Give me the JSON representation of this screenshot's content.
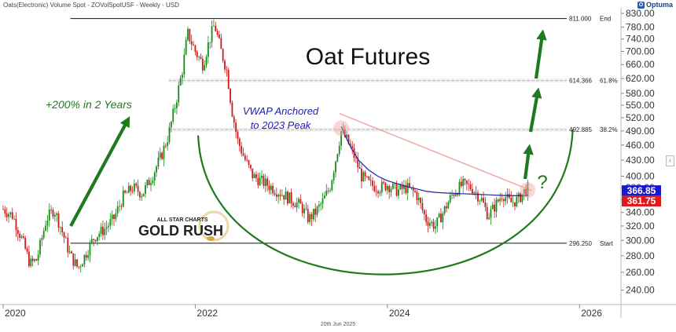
{
  "header": {
    "symbol_line": "Oats(Electronic) Volume Spot - ZOVolSpotUSF - Weekly - USD"
  },
  "brand": {
    "name": "Optuma"
  },
  "footer": {
    "date": "20th Jun 2025"
  },
  "logo": {
    "line1": "ALL STAR CHARTS",
    "line2": "GOLD RUSH"
  },
  "chart_data": {
    "type": "candlestick",
    "title": "Oat Futures",
    "x_tick_labels": [
      "2020",
      "2022",
      "2024",
      "2026"
    ],
    "x_tick_values": [
      2020.0,
      2022.0,
      2024.0,
      2026.0
    ],
    "x_range": [
      2020.0,
      2026.35
    ],
    "y_range": [
      225,
      845
    ],
    "y_scale": "log",
    "y_ticks": [
      240,
      260,
      280,
      300,
      320,
      340,
      360,
      380,
      400,
      430,
      460,
      490,
      520,
      550,
      580,
      620,
      660,
      700,
      740,
      780,
      830
    ],
    "y_tick_labels": [
      "240.00",
      "260.00",
      "280.00",
      "300.00",
      "320.00",
      "340.00",
      "360.00",
      "380.00",
      "400.00",
      "430.00",
      "460.00",
      "490.00",
      "520.00",
      "550.00",
      "580.00",
      "620.00",
      "660.00",
      "700.00",
      "740.00",
      "780.00",
      "830.00"
    ],
    "levels": [
      {
        "value": 811.0,
        "value_label": "811.000",
        "name": "End",
        "style": "solid",
        "color": "#000000"
      },
      {
        "value": 614.366,
        "value_label": "614.366",
        "name": "61.8%",
        "style": "dashed",
        "color": "#888888"
      },
      {
        "value": 492.885,
        "value_label": "492.885",
        "name": "38.2%",
        "style": "dashed",
        "color": "#888888"
      },
      {
        "value": 296.25,
        "value_label": "296.250",
        "name": "Start",
        "style": "solid",
        "color": "#000000"
      }
    ],
    "last_price_tags": [
      {
        "value": 366.85,
        "label": "366.85",
        "color": "#1a1acc"
      },
      {
        "value": 361.75,
        "label": "361.75",
        "color": "#e01a1a"
      }
    ],
    "annotations": {
      "rally": "+200% in 2 Years",
      "vwap_line1": "VWAP Anchored",
      "vwap_line2": "to 2023 Peak",
      "question": "?"
    },
    "price_path": [
      [
        2020.0,
        345
      ],
      [
        2020.1,
        335
      ],
      [
        2020.2,
        300
      ],
      [
        2020.28,
        270
      ],
      [
        2020.35,
        275
      ],
      [
        2020.45,
        330
      ],
      [
        2020.53,
        345
      ],
      [
        2020.6,
        318
      ],
      [
        2020.7,
        280
      ],
      [
        2020.78,
        265
      ],
      [
        2020.85,
        280
      ],
      [
        2020.95,
        305
      ],
      [
        2021.05,
        315
      ],
      [
        2021.15,
        330
      ],
      [
        2021.25,
        365
      ],
      [
        2021.35,
        380
      ],
      [
        2021.45,
        370
      ],
      [
        2021.55,
        400
      ],
      [
        2021.65,
        440
      ],
      [
        2021.72,
        480
      ],
      [
        2021.8,
        560
      ],
      [
        2021.87,
        650
      ],
      [
        2021.92,
        760
      ],
      [
        2022.0,
        700
      ],
      [
        2022.08,
        660
      ],
      [
        2022.15,
        740
      ],
      [
        2022.2,
        790
      ],
      [
        2022.27,
        700
      ],
      [
        2022.33,
        640
      ],
      [
        2022.38,
        540
      ],
      [
        2022.44,
        470
      ],
      [
        2022.52,
        430
      ],
      [
        2022.6,
        400
      ],
      [
        2022.7,
        390
      ],
      [
        2022.8,
        380
      ],
      [
        2022.9,
        370
      ],
      [
        2023.0,
        360
      ],
      [
        2023.1,
        350
      ],
      [
        2023.18,
        330
      ],
      [
        2023.25,
        340
      ],
      [
        2023.32,
        355
      ],
      [
        2023.4,
        380
      ],
      [
        2023.46,
        430
      ],
      [
        2023.52,
        490
      ],
      [
        2023.58,
        470
      ],
      [
        2023.65,
        440
      ],
      [
        2023.73,
        400
      ],
      [
        2023.82,
        385
      ],
      [
        2023.92,
        380
      ],
      [
        2024.0,
        385
      ],
      [
        2024.1,
        375
      ],
      [
        2024.2,
        380
      ],
      [
        2024.3,
        370
      ],
      [
        2024.4,
        330
      ],
      [
        2024.5,
        320
      ],
      [
        2024.58,
        340
      ],
      [
        2024.68,
        370
      ],
      [
        2024.78,
        385
      ],
      [
        2024.88,
        380
      ],
      [
        2024.98,
        360
      ],
      [
        2025.05,
        335
      ],
      [
        2025.12,
        350
      ],
      [
        2025.2,
        370
      ],
      [
        2025.28,
        355
      ],
      [
        2025.36,
        360
      ],
      [
        2025.43,
        375
      ],
      [
        2025.47,
        380
      ]
    ],
    "vwap_path": [
      [
        2023.52,
        500
      ],
      [
        2023.56,
        480
      ],
      [
        2023.62,
        455
      ],
      [
        2023.7,
        430
      ],
      [
        2023.8,
        412
      ],
      [
        2023.9,
        400
      ],
      [
        2024.0,
        392
      ],
      [
        2024.1,
        387
      ],
      [
        2024.2,
        382
      ],
      [
        2024.3,
        378
      ],
      [
        2024.4,
        374
      ],
      [
        2024.5,
        372
      ],
      [
        2024.6,
        371
      ],
      [
        2024.75,
        370
      ],
      [
        2024.9,
        369
      ],
      [
        2025.05,
        368
      ],
      [
        2025.2,
        367
      ],
      [
        2025.35,
        366.5
      ],
      [
        2025.47,
        366.85
      ]
    ],
    "trendline": [
      [
        2023.5,
        530
      ],
      [
        2025.5,
        375
      ]
    ],
    "colors": {
      "up": "#1a8a1a",
      "down": "#cc1a1a",
      "vwap": "#2222aa",
      "trendline": "#f4a6a6",
      "bowl": "#1f7a1f",
      "arrow": "#1f7a1f",
      "annotation_green": "#1f7a1f",
      "annotation_blue": "#1a1acc"
    }
  }
}
